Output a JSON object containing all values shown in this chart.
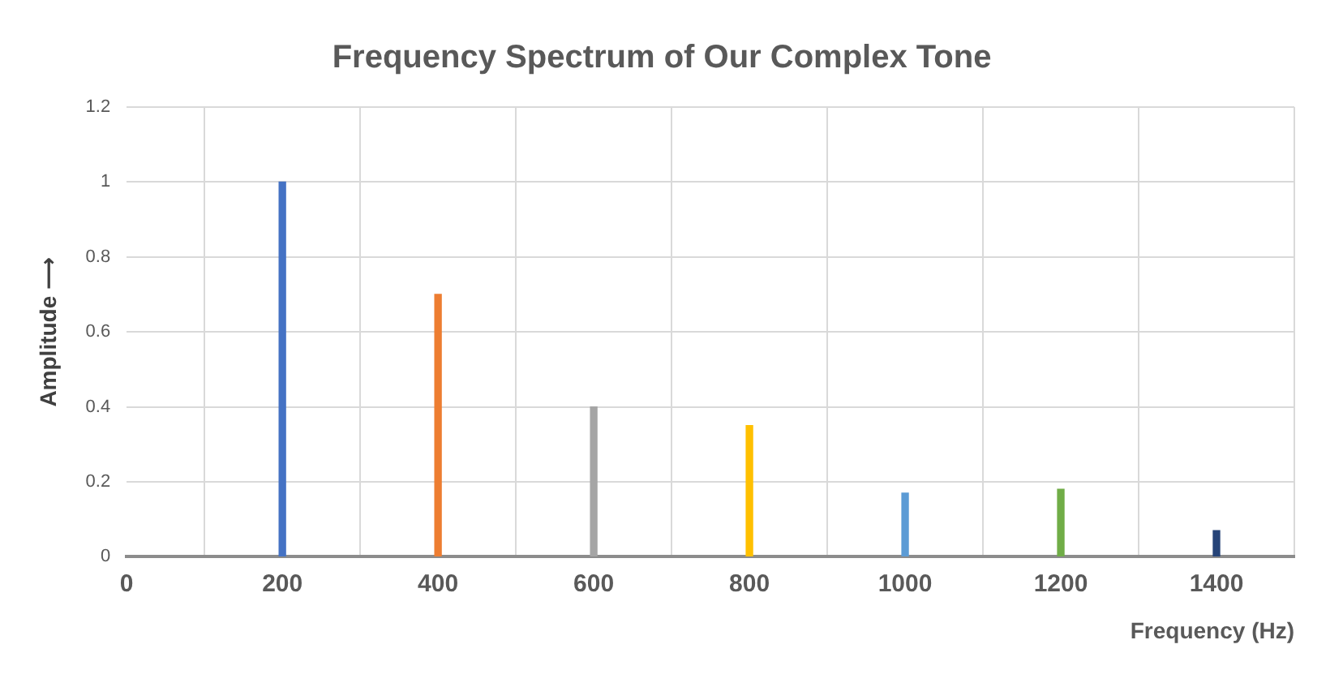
{
  "chart_data": {
    "type": "bar",
    "title": "Frequency Spectrum of Our Complex Tone",
    "xlabel": "Frequency (Hz)",
    "ylabel": "Amplitude ⟶",
    "x": [
      200,
      400,
      600,
      800,
      1000,
      1200,
      1400
    ],
    "values": [
      1,
      0.7,
      0.4,
      0.35,
      0.17,
      0.18,
      0.07
    ],
    "colors": [
      "#4472c4",
      "#ed7d31",
      "#a5a5a5",
      "#ffc000",
      "#5b9bd5",
      "#70ad47",
      "#264478"
    ],
    "xlim": [
      0,
      1500
    ],
    "xticks": [
      0,
      200,
      400,
      600,
      800,
      1000,
      1200,
      1400
    ],
    "ylim": [
      0,
      1.2
    ],
    "yticks": [
      0,
      0.2,
      0.4,
      0.6,
      0.8,
      1,
      1.2
    ],
    "grid": true,
    "legend": false
  }
}
